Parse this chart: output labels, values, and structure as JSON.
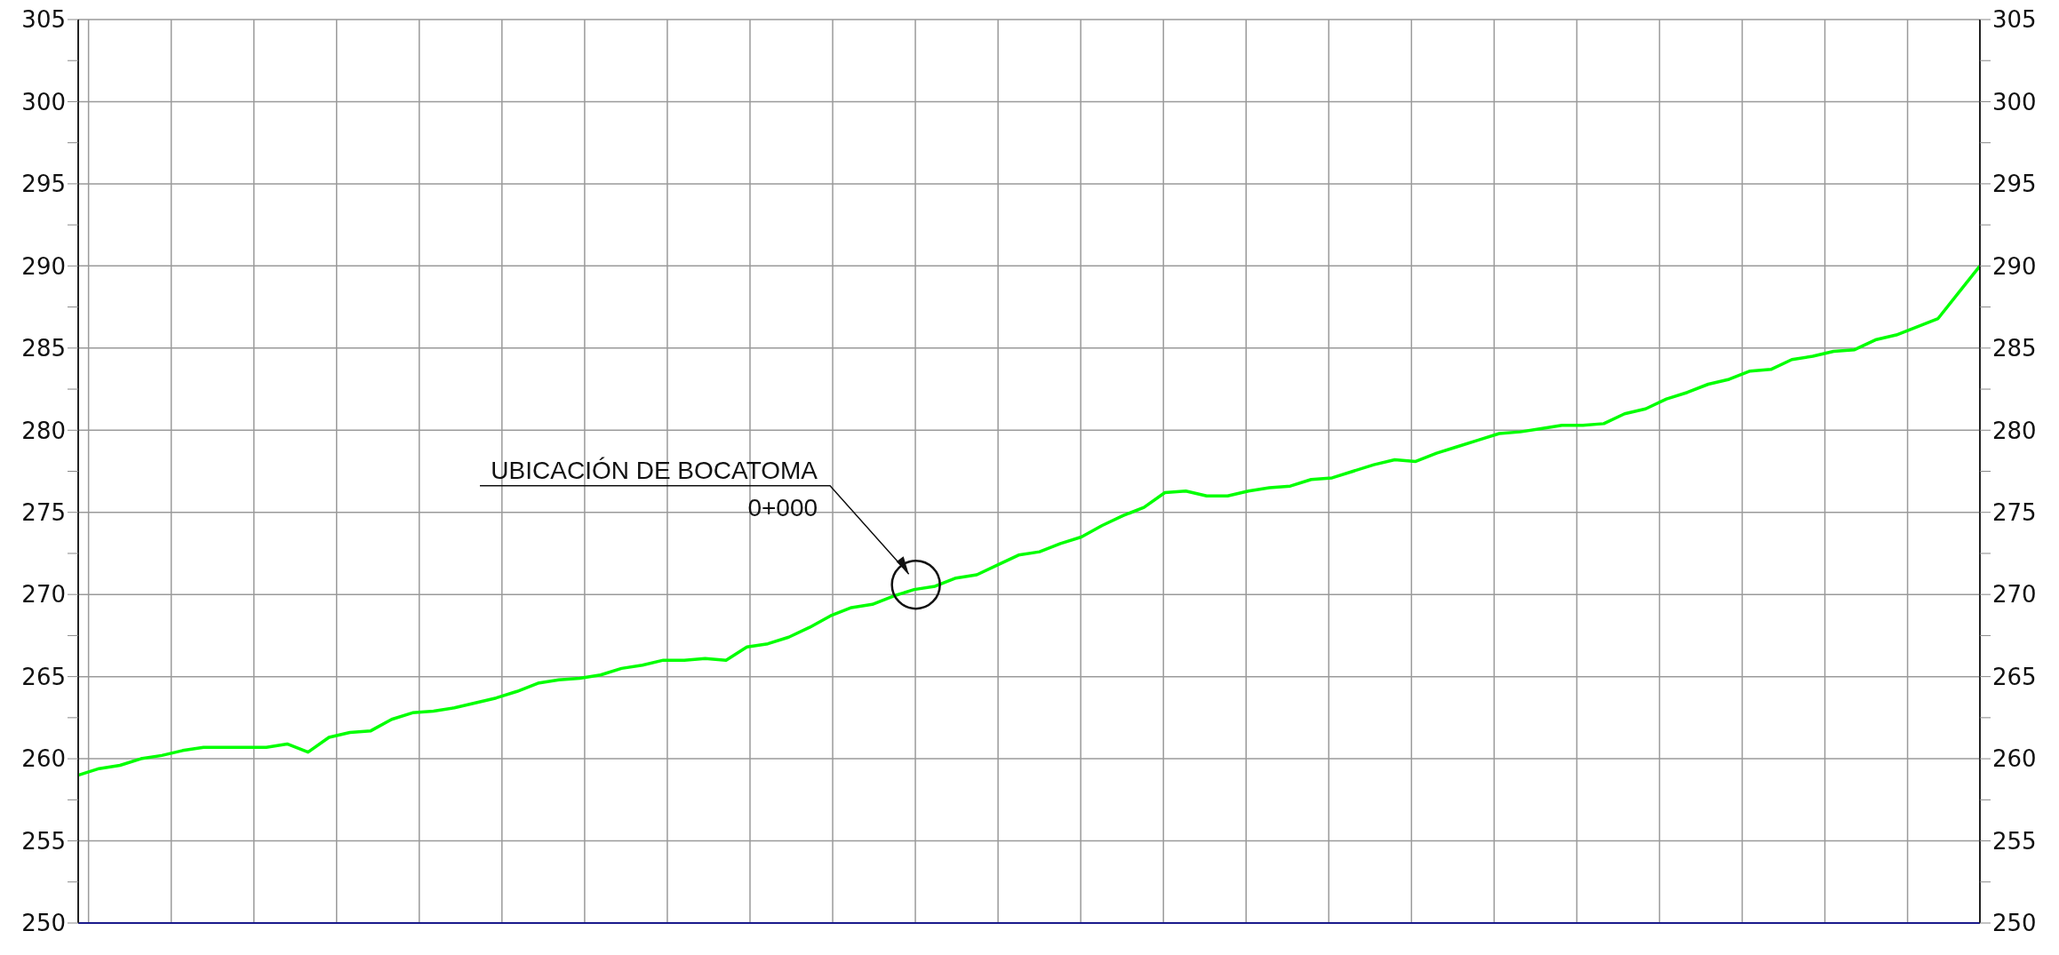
{
  "chart_data": {
    "type": "line",
    "categories": [
      null,
      null,
      null,
      null,
      null,
      null,
      null,
      null,
      null,
      null,
      null,
      null,
      null,
      null,
      null,
      null,
      null,
      null,
      null,
      null,
      null,
      null,
      null,
      null,
      null,
      null,
      null,
      null,
      null,
      null,
      null,
      null,
      null,
      null,
      null,
      null,
      null,
      null,
      null,
      null,
      null,
      null,
      null,
      null,
      null,
      null,
      null,
      null,
      null,
      null,
      null,
      null,
      null,
      null,
      null,
      null,
      null,
      null,
      null,
      null,
      null,
      null,
      null,
      null,
      null,
      null,
      null,
      null,
      null,
      null,
      null,
      null,
      null,
      null,
      null,
      null,
      null,
      null,
      null,
      null,
      null,
      null,
      null,
      null,
      null,
      null,
      null,
      null,
      null,
      null,
      null,
      null
    ],
    "series": [
      {
        "color": "#00ff00",
        "values": [
          259.0,
          259.4,
          259.6,
          260.0,
          260.2,
          260.5,
          260.7,
          260.7,
          260.7,
          260.7,
          260.9,
          260.4,
          261.3,
          261.6,
          261.7,
          262.4,
          262.8,
          262.9,
          263.1,
          263.4,
          263.7,
          264.1,
          264.6,
          264.8,
          264.9,
          265.1,
          265.5,
          265.7,
          266.0,
          266.0,
          266.1,
          266.0,
          266.8,
          267.0,
          267.4,
          268.0,
          268.7,
          269.2,
          269.4,
          269.9,
          270.3,
          270.5,
          271.0,
          271.2,
          271.8,
          272.4,
          272.6,
          273.1,
          273.5,
          274.2,
          274.8,
          275.3,
          276.2,
          276.3,
          276.0,
          276.0,
          276.3,
          276.5,
          276.6,
          277.0,
          277.1,
          277.5,
          277.9,
          278.2,
          278.1,
          278.6,
          279.0,
          279.4,
          279.8,
          279.9,
          280.1,
          280.3,
          280.3,
          280.4,
          281.0,
          281.3,
          281.9,
          282.3,
          282.8,
          283.1,
          283.6,
          283.7,
          284.3,
          284.5,
          284.8,
          284.9,
          285.5,
          285.8,
          286.3,
          286.8,
          288.4,
          290.0
        ]
      }
    ],
    "ylim": [
      250,
      305
    ],
    "yticks": [
      250,
      {
        "value": 252.5,
        "label": null
      },
      255,
      {
        "value": 257.5,
        "label": null
      },
      260,
      {
        "value": 262.5,
        "label": null
      },
      265,
      {
        "value": 267.5,
        "label": null
      },
      270,
      {
        "value": 272.5,
        "label": null
      },
      275,
      {
        "value": 277.5,
        "label": null
      },
      280,
      {
        "value": 282.5,
        "label": null
      },
      285,
      {
        "value": 287.5,
        "label": null
      },
      290,
      {
        "value": 292.5,
        "label": null
      },
      295,
      {
        "value": 297.5,
        "label": null
      },
      300,
      {
        "value": 302.5,
        "label": null
      },
      305
    ],
    "y2lim": [
      250,
      305
    ],
    "y2ticks": [
      250,
      {
        "value": 252.5,
        "label": null
      },
      255,
      {
        "value": 257.5,
        "label": null
      },
      260,
      {
        "value": 262.5,
        "label": null
      },
      265,
      {
        "value": 267.5,
        "label": null
      },
      270,
      {
        "value": 272.5,
        "label": null
      },
      275,
      {
        "value": 277.5,
        "label": null
      },
      280,
      {
        "value": 282.5,
        "label": null
      },
      285,
      {
        "value": 287.5,
        "label": null
      },
      290,
      {
        "value": 292.5,
        "label": null
      },
      295,
      {
        "value": 297.5,
        "label": null
      },
      300,
      {
        "value": 302.5,
        "label": null
      },
      305
    ],
    "annotations": [
      "UBICACIÓN DE BOCATOMA",
      "0+000"
    ],
    "grid": true,
    "marker": "none",
    "line_style": "solid"
  }
}
